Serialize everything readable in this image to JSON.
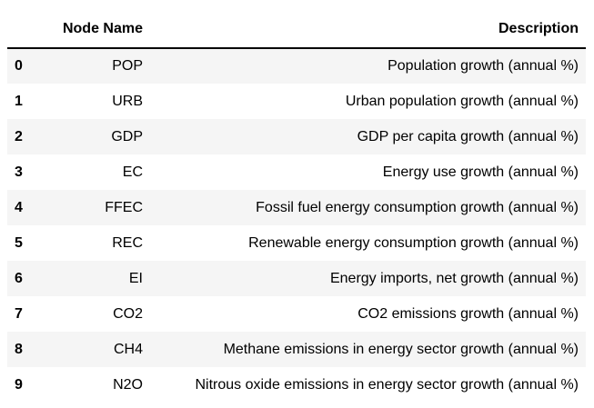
{
  "table": {
    "columns": {
      "index": "",
      "node_name": "Node Name",
      "description": "Description"
    },
    "rows": [
      {
        "index": "0",
        "node_name": "POP",
        "description": "Population growth (annual %)"
      },
      {
        "index": "1",
        "node_name": "URB",
        "description": "Urban population growth (annual %)"
      },
      {
        "index": "2",
        "node_name": "GDP",
        "description": "GDP per capita growth (annual %)"
      },
      {
        "index": "3",
        "node_name": "EC",
        "description": "Energy use growth (annual %)"
      },
      {
        "index": "4",
        "node_name": "FFEC",
        "description": "Fossil fuel energy consumption growth (annual %)"
      },
      {
        "index": "5",
        "node_name": "REC",
        "description": "Renewable energy consumption growth (annual %)"
      },
      {
        "index": "6",
        "node_name": "EI",
        "description": "Energy imports, net growth (annual %)"
      },
      {
        "index": "7",
        "node_name": "CO2",
        "description": "CO2 emissions growth (annual %)"
      },
      {
        "index": "8",
        "node_name": "CH4",
        "description": "Methane emissions in energy sector growth (annual %)"
      },
      {
        "index": "9",
        "node_name": "N2O",
        "description": "Nitrous oxide emissions in energy sector growth (annual %)"
      }
    ]
  }
}
